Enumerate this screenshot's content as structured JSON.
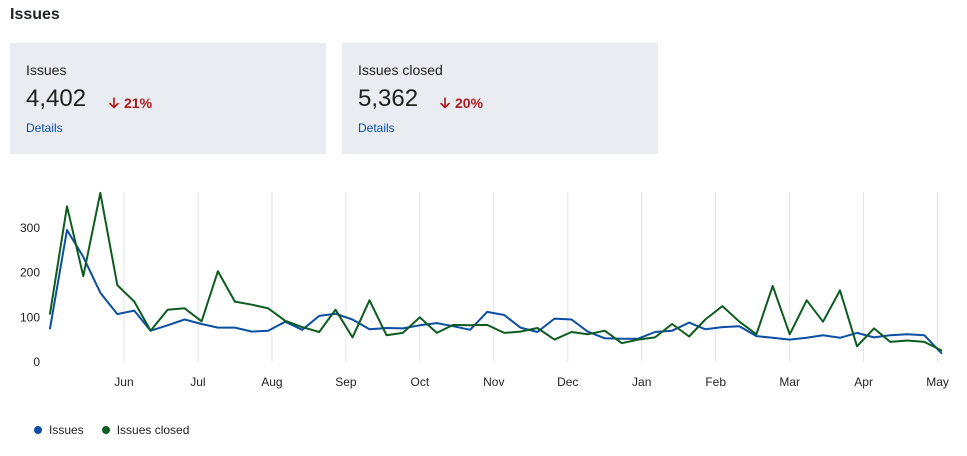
{
  "section": {
    "title": "Issues"
  },
  "cards": [
    {
      "label": "Issues",
      "value": "4,402",
      "delta": "21%",
      "delta_direction": "down",
      "link": "Details"
    },
    {
      "label": "Issues closed",
      "value": "5,362",
      "delta": "20%",
      "delta_direction": "down",
      "link": "Details"
    }
  ],
  "colors": {
    "issues": "#0b4ea2",
    "issues_closed": "#0d5c1f",
    "delta_down": "#b0181b",
    "card_bg": "#e9edf2"
  },
  "legend": [
    {
      "label": "Issues"
    },
    {
      "label": "Issues closed"
    }
  ],
  "chart_data": {
    "type": "line",
    "title": "",
    "xlabel": "",
    "ylabel": "",
    "ylim": [
      0,
      380
    ],
    "yticks": [
      0,
      100,
      200,
      300
    ],
    "grid": "vertical",
    "legend_position": "bottom-left",
    "x_domain": [
      0,
      12.1
    ],
    "month_ticks": [
      {
        "label": "Jun",
        "x": 1
      },
      {
        "label": "Jul",
        "x": 2
      },
      {
        "label": "Aug",
        "x": 3
      },
      {
        "label": "Sep",
        "x": 4
      },
      {
        "label": "Oct",
        "x": 5
      },
      {
        "label": "Nov",
        "x": 6
      },
      {
        "label": "Dec",
        "x": 7
      },
      {
        "label": "Jan",
        "x": 8
      },
      {
        "label": "Feb",
        "x": 9
      },
      {
        "label": "Mar",
        "x": 10
      },
      {
        "label": "Apr",
        "x": 11
      },
      {
        "label": "May",
        "x": 12
      }
    ],
    "series": [
      {
        "name": "Issues",
        "x": [
          0.0,
          0.23,
          0.45,
          0.68,
          0.91,
          1.14,
          1.36,
          1.59,
          1.82,
          2.05,
          2.27,
          2.5,
          2.73,
          2.95,
          3.18,
          3.41,
          3.64,
          3.86,
          4.09,
          4.32,
          4.55,
          4.77,
          5.0,
          5.23,
          5.45,
          5.68,
          5.91,
          6.14,
          6.36,
          6.59,
          6.82,
          7.05,
          7.27,
          7.5,
          7.73,
          7.95,
          8.18,
          8.41,
          8.64,
          8.86,
          9.09,
          9.32,
          9.55,
          9.77,
          10.0,
          10.23,
          10.45,
          10.68,
          10.91,
          11.14,
          11.36,
          11.59,
          11.82,
          12.05
        ],
        "values": [
          75,
          295,
          235,
          155,
          107,
          115,
          70,
          82,
          95,
          85,
          77,
          77,
          68,
          70,
          90,
          72,
          103,
          108,
          95,
          73,
          76,
          75,
          82,
          87,
          80,
          72,
          112,
          105,
          77,
          67,
          97,
          95,
          68,
          53,
          52,
          52,
          67,
          70,
          88,
          73,
          78,
          80,
          58,
          54,
          50,
          54,
          60,
          54,
          65,
          55,
          60,
          62,
          60,
          20
        ]
      },
      {
        "name": "Issues closed",
        "x": [
          0.0,
          0.23,
          0.45,
          0.68,
          0.91,
          1.14,
          1.36,
          1.59,
          1.82,
          2.05,
          2.27,
          2.5,
          2.73,
          2.95,
          3.18,
          3.41,
          3.64,
          3.86,
          4.09,
          4.32,
          4.55,
          4.77,
          5.0,
          5.23,
          5.45,
          5.68,
          5.91,
          6.14,
          6.36,
          6.59,
          6.82,
          7.05,
          7.27,
          7.5,
          7.73,
          7.95,
          8.18,
          8.41,
          8.64,
          8.86,
          9.09,
          9.32,
          9.55,
          9.77,
          10.0,
          10.23,
          10.45,
          10.68,
          10.91,
          11.14,
          11.36,
          11.59,
          11.82,
          12.05
        ],
        "values": [
          108,
          348,
          192,
          378,
          172,
          135,
          70,
          117,
          120,
          91,
          203,
          135,
          128,
          120,
          92,
          78,
          67,
          117,
          55,
          138,
          60,
          65,
          100,
          65,
          83,
          82,
          83,
          65,
          68,
          76,
          50,
          67,
          62,
          70,
          42,
          50,
          55,
          85,
          57,
          95,
          125,
          90,
          62,
          170,
          62,
          138,
          90,
          160,
          35,
          75,
          45,
          48,
          45,
          26
        ]
      }
    ]
  }
}
